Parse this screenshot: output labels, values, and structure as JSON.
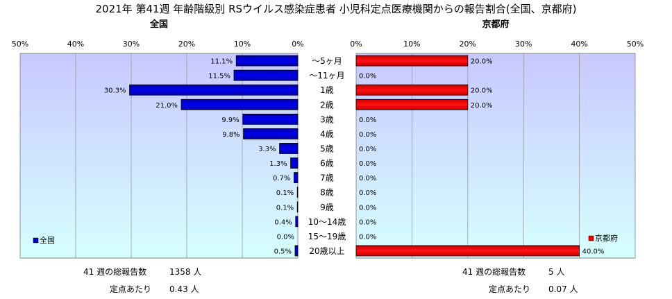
{
  "chart_data": {
    "type": "bar",
    "title": "2021年 第41週 年齢階級別 RSウイルス感染症患者 小児科定点医療機関からの報告割合(全国、京都府)",
    "categories": [
      "～5ヶ月",
      "～11ヶ月",
      "1歳",
      "2歳",
      "3歳",
      "4歳",
      "5歳",
      "6歳",
      "7歳",
      "8歳",
      "9歳",
      "10～14歳",
      "15～19歳",
      "20歳以上"
    ],
    "xlim": [
      0,
      50
    ],
    "ticks": [
      0,
      10,
      20,
      30,
      40,
      50
    ],
    "tick_suffix": "%",
    "grid": true,
    "series": [
      {
        "name": "全国",
        "panel_title": "全国",
        "direction": "left",
        "color": "#0000cc",
        "values": [
          11.1,
          11.5,
          30.3,
          21.0,
          9.9,
          9.8,
          3.3,
          1.3,
          0.7,
          0.1,
          0.1,
          0.4,
          0.0,
          0.5
        ],
        "labels": [
          "11.1%",
          "11.5%",
          "30.3%",
          "21.0%",
          "9.9%",
          "9.8%",
          "3.3%",
          "1.3%",
          "0.7%",
          "0.1%",
          "0.1%",
          "0.4%",
          "0.0%",
          "0.5%"
        ],
        "legend_position": "bottom-left"
      },
      {
        "name": "京都府",
        "panel_title": "京都府",
        "direction": "right",
        "color": "#ee0000",
        "values": [
          20.0,
          0.0,
          20.0,
          20.0,
          0.0,
          0.0,
          0.0,
          0.0,
          0.0,
          0.0,
          0.0,
          0.0,
          0.0,
          40.0
        ],
        "labels": [
          "20.0%",
          "0.0%",
          "20.0%",
          "20.0%",
          "0.0%",
          "0.0%",
          "0.0%",
          "0.0%",
          "0.0%",
          "0.0%",
          "0.0%",
          "0.0%",
          "0.0%",
          "40.0%"
        ],
        "legend_position": "bottom-right"
      }
    ]
  },
  "footer": {
    "left": {
      "total_label": "41 週の総報告数",
      "total_value": "1358 人",
      "per_label": "定点あたり",
      "per_value": "0.43 人"
    },
    "right": {
      "total_label": "41 週の総報告数",
      "total_value": "5 人",
      "per_label": "定点あたり",
      "per_value": "0.07 人"
    }
  },
  "colors": {
    "plot_bg_top": "#c8c8ff",
    "plot_bg_bottom": "#d6ffff",
    "grid": "#9a9a9a",
    "border": "#808080"
  }
}
